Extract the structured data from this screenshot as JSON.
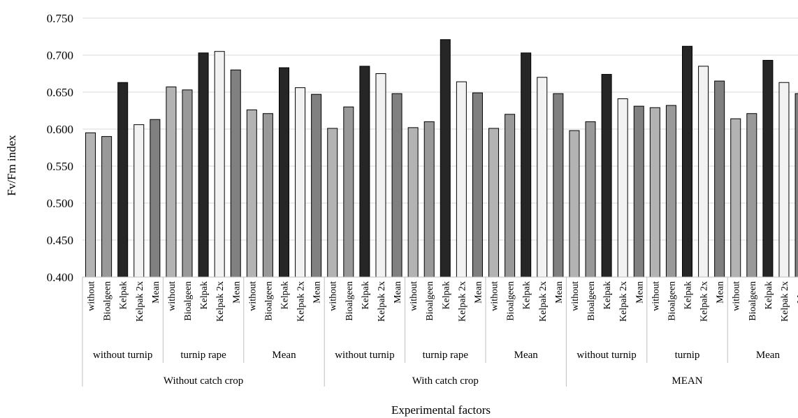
{
  "chart_data": {
    "type": "bar",
    "xlabel": "Experimental factors",
    "ylabel": "Fv/Fm index",
    "ylim": [
      0.4,
      0.75
    ],
    "ytick_values": [
      0.4,
      0.45,
      0.5,
      0.55,
      0.6,
      0.65,
      0.7,
      0.75
    ],
    "ytick_labels": [
      "0.400",
      "0.450",
      "0.500",
      "0.550",
      "0.600",
      "0.650",
      "0.700",
      "0.750"
    ],
    "grid": true,
    "bar_colors": {
      "without": "#b3b3b3",
      "Bioalgeen": "#999999",
      "Kelpak": "#262626",
      "Kelpak 2x": "#f2f2f2",
      "Mean": "#808080"
    },
    "outer_groups": [
      {
        "label": "Without catch crop",
        "groups": [
          {
            "label": "without turnip",
            "categories": [
              "without",
              "Bioalgeen",
              "Kelpak",
              "Kelpak 2x",
              "Mean"
            ],
            "values": [
              0.595,
              0.59,
              0.663,
              0.606,
              0.613
            ]
          },
          {
            "label": "turnip rape",
            "categories": [
              "without",
              "Bioalgeen",
              "Kelpak",
              "Kelpak 2x",
              "Mean"
            ],
            "values": [
              0.657,
              0.653,
              0.703,
              0.705,
              0.68
            ]
          },
          {
            "label": "Mean",
            "categories": [
              "without",
              "Bioalgeen",
              "Kelpak",
              "Kelpak 2x",
              "Mean"
            ],
            "values": [
              0.626,
              0.621,
              0.683,
              0.656,
              0.647
            ]
          }
        ]
      },
      {
        "label": "With catch crop",
        "groups": [
          {
            "label": "without turnip",
            "categories": [
              "without",
              "Bioalgeen",
              "Kelpak",
              "Kelpak 2x",
              "Mean"
            ],
            "values": [
              0.601,
              0.63,
              0.685,
              0.675,
              0.648
            ]
          },
          {
            "label": "turnip rape",
            "categories": [
              "without",
              "Bioalgeen",
              "Kelpak",
              "Kelpak 2x",
              "Mean"
            ],
            "values": [
              0.602,
              0.61,
              0.721,
              0.664,
              0.649
            ]
          },
          {
            "label": "Mean",
            "categories": [
              "without",
              "Bioalgeen",
              "Kelpak",
              "Kelpak 2x",
              "Mean"
            ],
            "values": [
              0.601,
              0.62,
              0.703,
              0.67,
              0.648
            ]
          }
        ]
      },
      {
        "label": "MEAN",
        "groups": [
          {
            "label": "without turnip",
            "categories": [
              "without",
              "Bioalgeen",
              "Kelpak",
              "Kelpak 2x",
              "Mean"
            ],
            "values": [
              0.598,
              0.61,
              0.674,
              0.641,
              0.631
            ]
          },
          {
            "label": "turnip",
            "categories": [
              "without",
              "Bioalgeen",
              "Kelpak",
              "Kelpak 2x",
              "Mean"
            ],
            "values": [
              0.629,
              0.632,
              0.712,
              0.685,
              0.665
            ]
          },
          {
            "label": "Mean",
            "categories": [
              "without",
              "Bioalgeen",
              "Kelpak",
              "Kelpak 2x",
              "Mean"
            ],
            "values": [
              0.614,
              0.621,
              0.693,
              0.663,
              0.648
            ]
          }
        ]
      }
    ]
  }
}
